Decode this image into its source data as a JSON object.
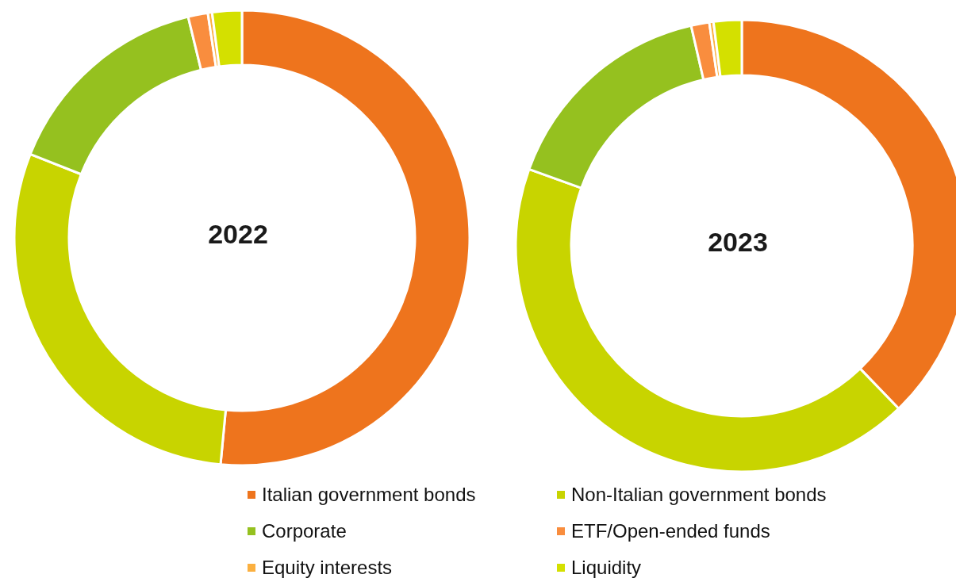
{
  "chart_data": [
    {
      "type": "donut",
      "title": "2022",
      "categories": [
        "Italian government bonds",
        "Non-Italian government bonds",
        "Corporate",
        "ETF/Open-ended funds",
        "Equity interests",
        "Liquidity"
      ],
      "values": [
        51.5,
        29.5,
        15.2,
        1.4,
        0.3,
        2.1
      ],
      "colors": [
        "#ee741d",
        "#c8d400",
        "#95c11f",
        "#f98d3e",
        "#fbb040",
        "#d4e000"
      ],
      "legend": "bottom"
    },
    {
      "type": "donut",
      "title": "2023",
      "categories": [
        null,
        null,
        null,
        null,
        null,
        null
      ],
      "values": [
        37.8,
        42.7,
        15.9,
        1.3,
        0.3,
        2.0
      ],
      "colors": [
        "#ee741d",
        "#c8d400",
        "#95c11f",
        "#f98d3e",
        "#fbb040",
        "#d4e000"
      ]
    }
  ]
}
